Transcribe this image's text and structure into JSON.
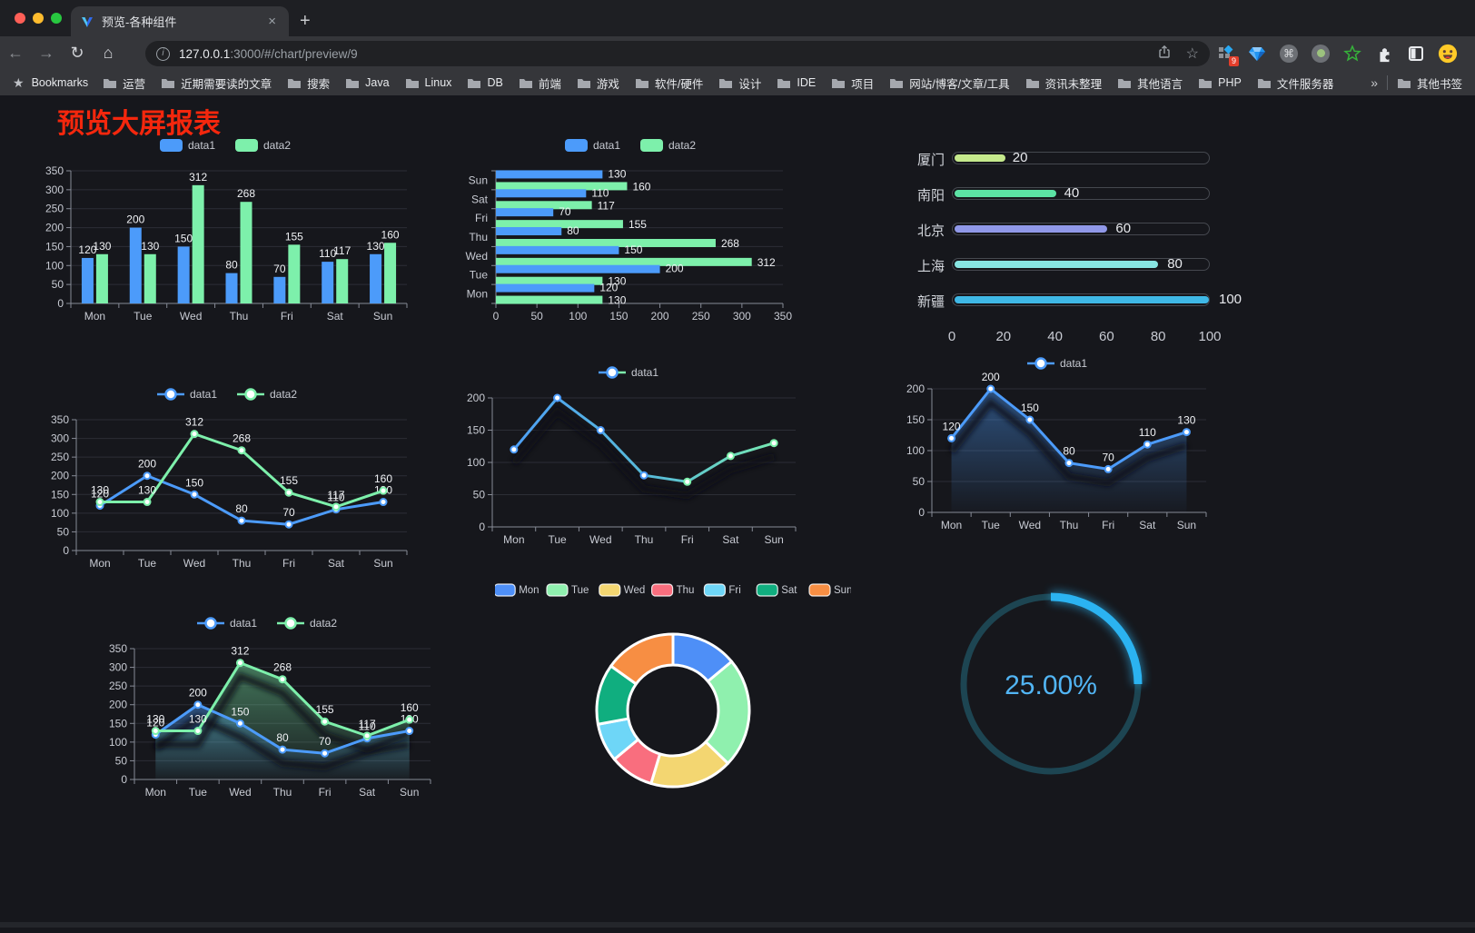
{
  "browser": {
    "tab": {
      "title": "预览-各种组件",
      "close_label": "×",
      "new_tab_label": "+"
    },
    "url": {
      "host": "127.0.0.1",
      "rest": ":3000/#/chart/preview/9"
    },
    "toolbar_icons": {
      "back": "←",
      "forward": "→",
      "reload": "↻",
      "home": "⌂",
      "star": "☆",
      "more": "⋮"
    },
    "ext_badge": "9",
    "bookmarks_bar": {
      "label": "Bookmarks",
      "items": [
        "运营",
        "近期需要读的文章",
        "搜索",
        "Java",
        "Linux",
        "DB",
        "前端",
        "游戏",
        "软件/硬件",
        "设计",
        "IDE",
        "项目",
        "网站/博客/文章/工具",
        "资讯未整理",
        "其他语言",
        "PHP",
        "文件服务器"
      ],
      "overflow": "»",
      "other": "其他书签"
    }
  },
  "page": {
    "title": "预览大屏报表",
    "title_color": "#F4270D",
    "background": "#16171C"
  },
  "chart_data": [
    {
      "id": "bar-vertical",
      "type": "bar",
      "categories": [
        "Mon",
        "Tue",
        "Wed",
        "Thu",
        "Fri",
        "Sat",
        "Sun"
      ],
      "series": [
        {
          "name": "data1",
          "color": "#4C9BFA",
          "values": [
            120,
            200,
            150,
            80,
            70,
            110,
            130
          ]
        },
        {
          "name": "data2",
          "color": "#7DF0AB",
          "values": [
            130,
            130,
            312,
            268,
            155,
            117,
            160
          ]
        }
      ],
      "ylim": [
        0,
        350
      ],
      "ystep": 50,
      "legend_position": "top",
      "grid": true
    },
    {
      "id": "bar-horizontal",
      "type": "horizontal-bar",
      "categories": [
        "Mon",
        "Tue",
        "Wed",
        "Thu",
        "Fri",
        "Sat",
        "Sun"
      ],
      "series": [
        {
          "name": "data1",
          "color": "#4C9BFA",
          "values": [
            120,
            200,
            150,
            80,
            70,
            110,
            130
          ]
        },
        {
          "name": "data2",
          "color": "#7DF0AB",
          "values": [
            130,
            130,
            312,
            268,
            155,
            117,
            160
          ]
        }
      ],
      "xlim": [
        0,
        350
      ],
      "xstep": 50,
      "legend_position": "top"
    },
    {
      "id": "progress-bars",
      "type": "progress",
      "max": 100,
      "items": [
        {
          "label": "厦门",
          "value": 20,
          "color": "#C5E98C"
        },
        {
          "label": "南阳",
          "value": 40,
          "color": "#5CE2A4"
        },
        {
          "label": "北京",
          "value": 60,
          "color": "#9098E8"
        },
        {
          "label": "上海",
          "value": 80,
          "color": "#87E5E2"
        },
        {
          "label": "新疆",
          "value": 100,
          "color": "#3FB8E6"
        }
      ],
      "axis_ticks": [
        0,
        20,
        40,
        60,
        80,
        100
      ]
    },
    {
      "id": "line-dual",
      "type": "line",
      "categories": [
        "Mon",
        "Tue",
        "Wed",
        "Thu",
        "Fri",
        "Sat",
        "Sun"
      ],
      "series": [
        {
          "name": "data1",
          "color": "#4C9BFA",
          "values": [
            120,
            200,
            150,
            80,
            70,
            110,
            130
          ]
        },
        {
          "name": "data2",
          "color": "#7DF0AB",
          "values": [
            130,
            130,
            312,
            268,
            155,
            117,
            160
          ]
        }
      ],
      "ylim": [
        0,
        350
      ],
      "ystep": 50,
      "show_labels": true,
      "legend_position": "top"
    },
    {
      "id": "line-gradient",
      "type": "line",
      "categories": [
        "Mon",
        "Tue",
        "Wed",
        "Thu",
        "Fri",
        "Sat",
        "Sun"
      ],
      "series": [
        {
          "name": "data1",
          "color": "#4C9BFA",
          "gradient": [
            "#4C9BFA",
            "#7DF0AB"
          ],
          "values": [
            120,
            200,
            150,
            80,
            70,
            110,
            130
          ]
        }
      ],
      "ylim": [
        0,
        200
      ],
      "ystep": 50,
      "show_labels": false,
      "echo_shadow": true,
      "legend_position": "top"
    },
    {
      "id": "area-single",
      "type": "line",
      "categories": [
        "Mon",
        "Tue",
        "Wed",
        "Thu",
        "Fri",
        "Sat",
        "Sun"
      ],
      "series": [
        {
          "name": "data1",
          "color": "#4C9BFA",
          "area": true,
          "values": [
            120,
            200,
            150,
            80,
            70,
            110,
            130
          ]
        }
      ],
      "ylim": [
        0,
        200
      ],
      "ystep": 50,
      "show_labels": true,
      "echo_shadow": true,
      "legend_position": "top"
    },
    {
      "id": "area-dual",
      "type": "line",
      "categories": [
        "Mon",
        "Tue",
        "Wed",
        "Thu",
        "Fri",
        "Sat",
        "Sun"
      ],
      "series": [
        {
          "name": "data1",
          "color": "#4C9BFA",
          "area": true,
          "values": [
            120,
            200,
            150,
            80,
            70,
            110,
            130
          ]
        },
        {
          "name": "data2",
          "color": "#7DF0AB",
          "area": true,
          "values": [
            130,
            130,
            312,
            268,
            155,
            117,
            160
          ]
        }
      ],
      "ylim": [
        0,
        350
      ],
      "ystep": 50,
      "show_labels": true,
      "echo_shadow": true,
      "legend_position": "top"
    },
    {
      "id": "donut",
      "type": "pie",
      "categories": [
        "Mon",
        "Tue",
        "Wed",
        "Thu",
        "Fri",
        "Sat",
        "Sun"
      ],
      "values": [
        120,
        200,
        150,
        80,
        70,
        110,
        130
      ],
      "colors": [
        "#4E8FF7",
        "#8FF0AE",
        "#F3D671",
        "#F96E7E",
        "#6ED6F7",
        "#10AE7F",
        "#F78E43"
      ],
      "legend_position": "top"
    },
    {
      "id": "gauge",
      "type": "gauge",
      "value": 25,
      "label": "25.00%",
      "color": "#2BB3F1",
      "track_color": "#1D4552",
      "text_color": "#52B5F4"
    }
  ]
}
